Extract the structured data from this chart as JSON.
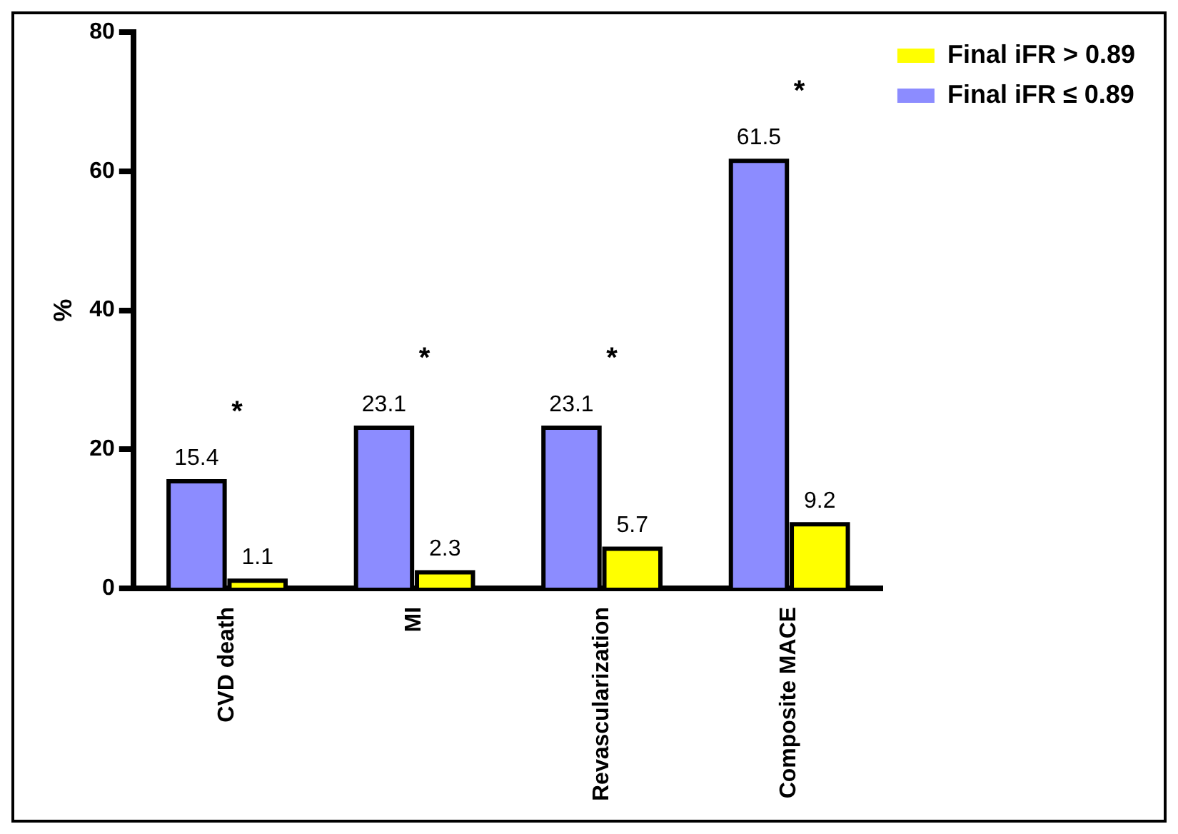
{
  "chart_data": {
    "type": "bar",
    "ylabel": "%",
    "categories": [
      "CVD death",
      "MI",
      "Revascularization",
      "Composite MACE"
    ],
    "series": [
      {
        "name": "Final iFR ≤ 0.89",
        "color": "#8c8cff",
        "values": [
          15.4,
          23.1,
          23.1,
          61.5
        ]
      },
      {
        "name": "Final iFR > 0.89",
        "color": "#ffff00",
        "values": [
          1.1,
          2.3,
          5.7,
          9.2
        ]
      }
    ],
    "ylim": [
      0,
      80
    ],
    "yticks": [
      0,
      20,
      40,
      60,
      80
    ],
    "grid": false,
    "legend": "top right",
    "data_labels": true,
    "annotations": [
      "*",
      "*",
      "*",
      "*"
    ]
  }
}
